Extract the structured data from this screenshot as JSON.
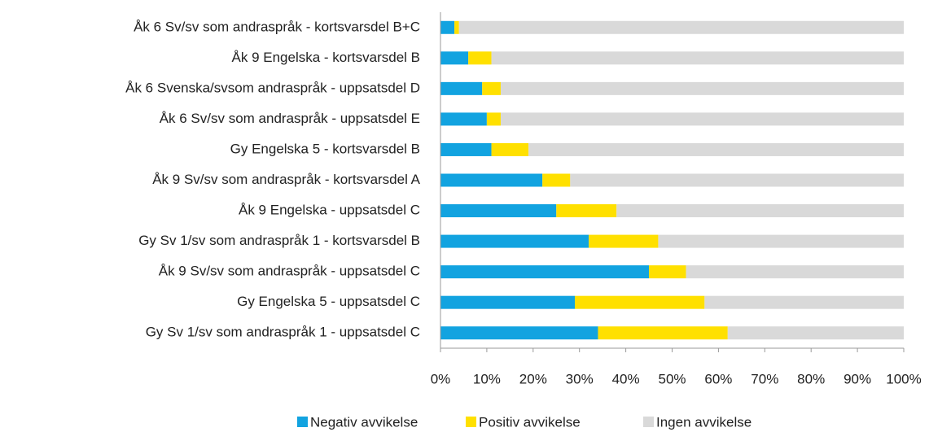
{
  "chart_data": {
    "type": "stacked_bar_horizontal",
    "categories": [
      "Åk 6 Sv/sv som andraspråk - kortsvarsdel B+C",
      "Åk 9 Engelska - kortsvarsdel B",
      "Åk 6 Svenska/svsom andraspråk - uppsatsdel D",
      "Åk 6 Sv/sv som andraspråk - uppsatsdel E",
      "Gy Engelska 5 - kortsvarsdel B",
      "Åk 9 Sv/sv som andraspråk - kortsvarsdel A",
      "Åk 9 Engelska - uppsatsdel C",
      "Gy Sv 1/sv som andraspråk 1 - kortsvarsdel B",
      "Åk 9 Sv/sv som andraspråk - uppsatsdel C",
      "Gy Engelska 5 - uppsatsdel C",
      "Gy Sv 1/sv som andraspråk 1 - uppsatsdel C"
    ],
    "series": [
      {
        "name": "Negativ avvikelse",
        "color": "#12a3e0",
        "values": [
          3,
          6,
          9,
          10,
          11,
          22,
          25,
          32,
          45,
          29,
          34
        ]
      },
      {
        "name": "Positiv avvikelse",
        "color": "#ffe000",
        "values": [
          1,
          5,
          4,
          3,
          8,
          6,
          13,
          15,
          8,
          28,
          28
        ]
      },
      {
        "name": "Ingen avvikelse",
        "color": "#d9d9d9",
        "values": [
          96,
          89,
          87,
          87,
          81,
          72,
          62,
          53,
          47,
          43,
          38
        ]
      }
    ],
    "xlim": [
      0,
      100
    ],
    "xticks": [
      {
        "value": 0,
        "label": "0%"
      },
      {
        "value": 10,
        "label": "10%"
      },
      {
        "value": 20,
        "label": "20%"
      },
      {
        "value": 30,
        "label": "30%"
      },
      {
        "value": 40,
        "label": "40%"
      },
      {
        "value": 50,
        "label": "50%"
      },
      {
        "value": 60,
        "label": "60%"
      },
      {
        "value": 70,
        "label": "70%"
      },
      {
        "value": 80,
        "label": "80%"
      },
      {
        "value": 90,
        "label": "90%"
      },
      {
        "value": 100,
        "label": "100%"
      }
    ],
    "legend": "bottom"
  }
}
